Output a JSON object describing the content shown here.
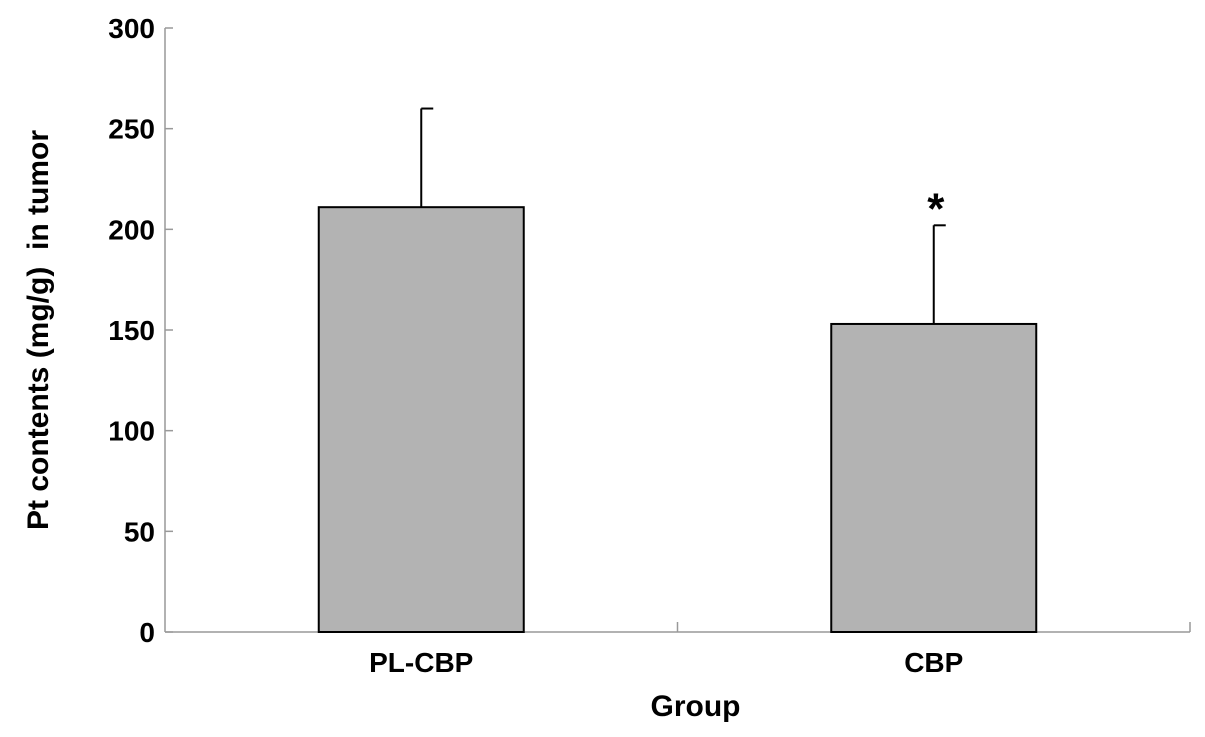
{
  "chart_data": {
    "type": "bar",
    "title": "",
    "xlabel": "Group",
    "ylabel": "Pt contents (mg/g)  in tumor",
    "categories": [
      "PL-CBP",
      "CBP"
    ],
    "values": [
      211,
      153
    ],
    "error_upper": [
      260,
      202
    ],
    "annotations": [
      "",
      "*"
    ],
    "ylim": [
      0,
      300
    ],
    "yticks": [
      0,
      50,
      100,
      150,
      200,
      250,
      300
    ],
    "grid": false,
    "bar_color": "#b3b3b3",
    "axis_color": "#999999"
  }
}
